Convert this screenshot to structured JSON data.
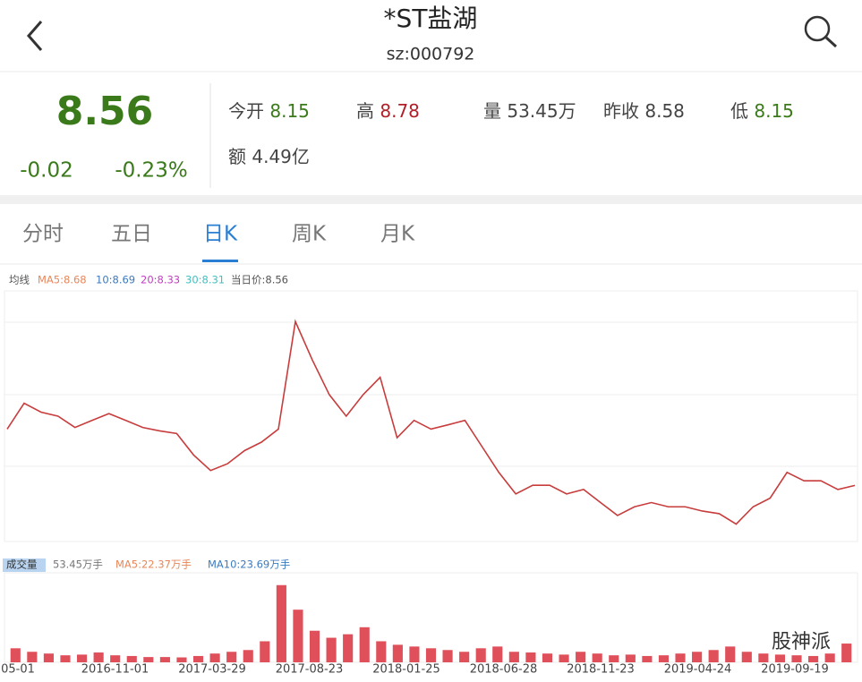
{
  "header": {
    "title": "*ST盐湖",
    "code": "sz:000792"
  },
  "quote": {
    "price": "8.56",
    "change": "-0.02",
    "change_pct": "-0.23%",
    "fields": [
      {
        "label": "今开",
        "value": "8.15"
      },
      {
        "label": "高",
        "value": "8.78"
      },
      {
        "label": "量",
        "value": "53.45万"
      },
      {
        "label": "昨收",
        "value": "8.58"
      },
      {
        "label": "低",
        "value": "8.15"
      },
      {
        "label": "额",
        "value": "4.49亿"
      }
    ]
  },
  "tabs": [
    "分时",
    "五日",
    "日K",
    "周K",
    "月K"
  ],
  "kline_legend": [
    "均线",
    "MA5:8.68",
    "10:8.69",
    "20:8.33",
    "30:8.31",
    "当日价:8.56"
  ],
  "volume_legend": [
    "成交量",
    "53.45万手",
    "MA5:22.37万手",
    "MA10:23.69万手"
  ],
  "x_labels": [
    "05-01",
    "2016-11-01",
    "2017-03-29",
    "2017-08-23",
    "2018-01-25",
    "2018-06-28",
    "2018-11-23",
    "2019-04-24",
    "2019-09-19"
  ],
  "watermark": "股神派",
  "chart_data": [
    {
      "type": "line",
      "color": "#c83c3c",
      "ylim": [
        6,
        18
      ],
      "values": [
        11.36,
        12.64,
        12.2,
        12.0,
        11.44,
        11.79,
        12.13,
        11.79,
        11.44,
        11.27,
        11.14,
        10.07,
        9.3,
        9.64,
        10.29,
        10.71,
        11.36,
        16.7,
        14.79,
        13.07,
        12.0,
        13.07,
        13.93,
        10.93,
        11.79,
        11.36,
        11.57,
        11.79,
        10.5,
        9.21,
        8.14,
        8.57,
        8.57,
        8.14,
        8.36,
        7.71,
        7.07,
        7.5,
        7.71,
        7.5,
        7.5,
        7.29,
        7.16,
        6.64,
        7.5,
        7.93,
        9.21,
        8.79,
        8.79,
        8.36,
        8.56
      ]
    },
    {
      "type": "bar",
      "color": "#e0505a",
      "ylim": [
        0,
        250
      ],
      "values": [
        40,
        30,
        25,
        20,
        22,
        28,
        20,
        18,
        15,
        15,
        14,
        18,
        25,
        30,
        35,
        60,
        220,
        150,
        90,
        70,
        80,
        100,
        60,
        50,
        45,
        40,
        35,
        30,
        40,
        45,
        30,
        28,
        25,
        22,
        30,
        25,
        20,
        22,
        18,
        20,
        25,
        30,
        35,
        45,
        30,
        25,
        22,
        20,
        18,
        25,
        53.45
      ]
    }
  ]
}
